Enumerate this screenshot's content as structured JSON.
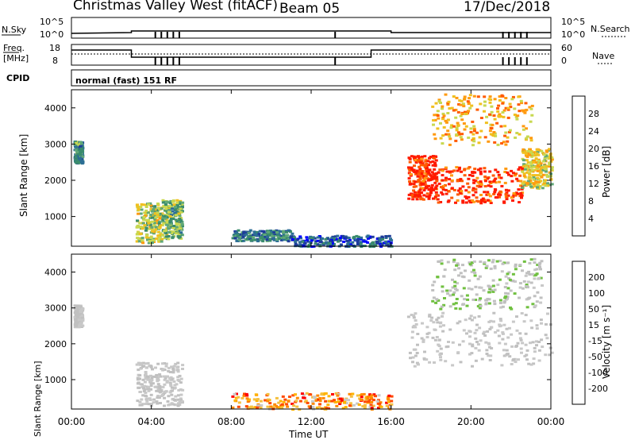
{
  "header": {
    "title": "Christmas Valley West (fitACF)",
    "beam": "Beam 05",
    "date": "17/Dec/2018"
  },
  "status_panels": {
    "nsky_label": "N.Sky",
    "nsky_ticks": [
      "10^5",
      "10^0"
    ],
    "nsearch_label": "N.Search",
    "nsearch_ticks": [
      "10^5",
      "10^0"
    ],
    "freq_label_line1": "Freq.",
    "freq_label_line2": "[MHz]",
    "freq_ticks": [
      "18",
      "8"
    ],
    "nave_label": "Nave",
    "nave_ticks": [
      "60",
      "0"
    ],
    "cpid_label": "CPID",
    "cpid_text": "normal (fast) 151 RF"
  },
  "chart_data": [
    {
      "type": "heatmap",
      "name": "power",
      "ylabel": "Slant Range [km]",
      "xlabel": "",
      "xlim": [
        "00:00",
        "00:00"
      ],
      "ylim": [
        180,
        4500
      ],
      "y_ticks": [
        "1000",
        "2000",
        "3000",
        "4000"
      ],
      "colorbar_label": "Power [dB]",
      "colorbar_ticks": [
        "28",
        "24",
        "20",
        "16",
        "12",
        "8",
        "4"
      ],
      "colorbar_colors": [
        "#0000ff",
        "#1e3c9a",
        "#2c6e95",
        "#3a8c6c",
        "#60a878",
        "#c8d850",
        "#f0c020",
        "#ff9a10",
        "#ff5a00",
        "#ff1a00"
      ],
      "regions": [
        {
          "x": [
            0.1,
            0.5
          ],
          "range": [
            2500,
            3100
          ],
          "level": 0.35
        },
        {
          "x": [
            3.2,
            4.5
          ],
          "range": [
            300,
            1400
          ],
          "level": 0.55
        },
        {
          "x": [
            4.5,
            5.5
          ],
          "range": [
            400,
            1500
          ],
          "level": 0.45
        },
        {
          "x": [
            8.0,
            11.0
          ],
          "range": [
            350,
            650
          ],
          "level": 0.3
        },
        {
          "x": [
            11.0,
            16.0
          ],
          "range": [
            200,
            500
          ],
          "level": 0.2
        },
        {
          "x": [
            16.8,
            18.3
          ],
          "range": [
            1500,
            2700
          ],
          "level": 0.95
        },
        {
          "x": [
            18.3,
            22.5
          ],
          "range": [
            1400,
            2400
          ],
          "level": 0.9
        },
        {
          "x": [
            22.5,
            24.0
          ],
          "range": [
            1800,
            2900
          ],
          "level": 0.6
        },
        {
          "x": [
            18.0,
            23.0
          ],
          "range": [
            3000,
            4400
          ],
          "level": 0.7
        }
      ]
    },
    {
      "type": "heatmap",
      "name": "velocity",
      "ylabel": "Slant Range [km]",
      "xlabel": "Time UT",
      "xlim": [
        "00:00",
        "00:00"
      ],
      "ylim": [
        180,
        4500
      ],
      "x_ticks": [
        "00:00",
        "04:00",
        "08:00",
        "12:00",
        "16:00",
        "20:00",
        "00:00"
      ],
      "y_ticks": [
        "1000",
        "2000",
        "3000",
        "4000"
      ],
      "colorbar_label": "Velocity [m s⁻¹]",
      "colorbar_ticks": [
        "200",
        "100",
        "50",
        "15",
        "-15",
        "-50",
        "-100",
        "-200"
      ],
      "colorbar_colors": [
        "#ff0000",
        "#ff4a00",
        "#ff8800",
        "#ffb400",
        "#f4c040",
        "#c8c8c8",
        "#c0c0c0",
        "#70c040",
        "#38a838",
        "#287878",
        "#2850b0",
        "#1020d0"
      ],
      "regions": [
        {
          "x": [
            0.1,
            0.5
          ],
          "range": [
            2500,
            3100
          ],
          "level": 0.5
        },
        {
          "x": [
            3.2,
            5.5
          ],
          "range": [
            300,
            1500
          ],
          "level": 0.5
        },
        {
          "x": [
            8.0,
            16.0
          ],
          "range": [
            200,
            650
          ],
          "level": 0.25
        },
        {
          "x": [
            16.8,
            24.0
          ],
          "range": [
            1400,
            2900
          ],
          "level": 0.5
        },
        {
          "x": [
            18.0,
            23.5
          ],
          "range": [
            3000,
            4400
          ],
          "level": 0.55
        }
      ]
    }
  ]
}
